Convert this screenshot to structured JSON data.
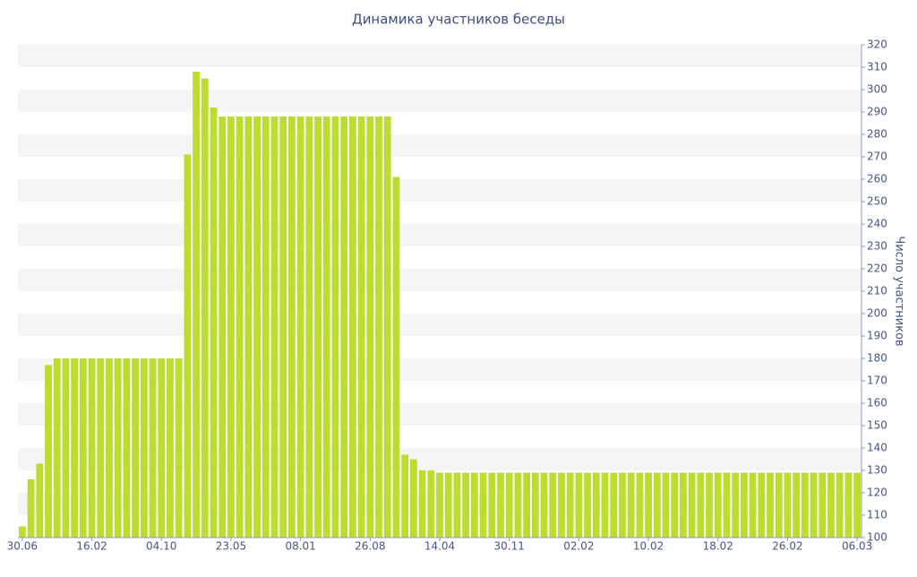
{
  "chart_data": {
    "type": "bar",
    "title": "Динамика участников беседы",
    "y_label": "Число участников",
    "categories": [
      "30.06",
      null,
      null,
      null,
      null,
      null,
      null,
      null,
      "16.02",
      null,
      null,
      null,
      null,
      null,
      null,
      null,
      "04.10",
      null,
      null,
      null,
      null,
      null,
      null,
      null,
      "23.05",
      null,
      null,
      null,
      null,
      null,
      null,
      null,
      "08.01",
      null,
      null,
      null,
      null,
      null,
      null,
      null,
      "26.08",
      null,
      null,
      null,
      null,
      null,
      null,
      null,
      "14.04",
      null,
      null,
      null,
      null,
      null,
      null,
      null,
      "30.11",
      null,
      null,
      null,
      null,
      null,
      null,
      null,
      "02.02",
      null,
      null,
      null,
      null,
      null,
      null,
      null,
      "10.02",
      null,
      null,
      null,
      null,
      null,
      null,
      null,
      "18.02",
      null,
      null,
      null,
      null,
      null,
      null,
      null,
      "26.02",
      null,
      null,
      null,
      null,
      null,
      null,
      null,
      "06.03"
    ],
    "values": [
      105,
      126,
      133,
      177,
      180,
      180,
      180,
      180,
      180,
      180,
      180,
      180,
      180,
      180,
      180,
      180,
      180,
      180,
      180,
      271,
      308,
      305,
      292,
      288,
      288,
      288,
      288,
      288,
      288,
      288,
      288,
      288,
      288,
      288,
      288,
      288,
      288,
      288,
      288,
      288,
      288,
      288,
      288,
      261,
      137,
      135,
      130,
      130,
      129,
      129,
      129,
      129,
      129,
      129,
      129,
      129,
      129,
      129,
      129,
      129,
      129,
      129,
      129,
      129,
      129,
      129,
      129,
      129,
      129,
      129,
      129,
      129,
      129,
      129,
      129,
      129,
      129,
      129,
      129,
      129,
      129,
      129,
      129,
      129,
      129,
      129,
      129,
      129,
      129,
      129,
      129,
      129,
      129,
      129,
      129,
      129,
      129
    ],
    "color": "#bcdc30",
    "ylim": [
      100,
      320
    ],
    "yticks": [
      100,
      110,
      120,
      130,
      140,
      150,
      160,
      170,
      180,
      190,
      200,
      210,
      220,
      230,
      240,
      250,
      260,
      270,
      280,
      290,
      300,
      310,
      320
    ],
    "grid": true,
    "y_axis_side": "right"
  }
}
